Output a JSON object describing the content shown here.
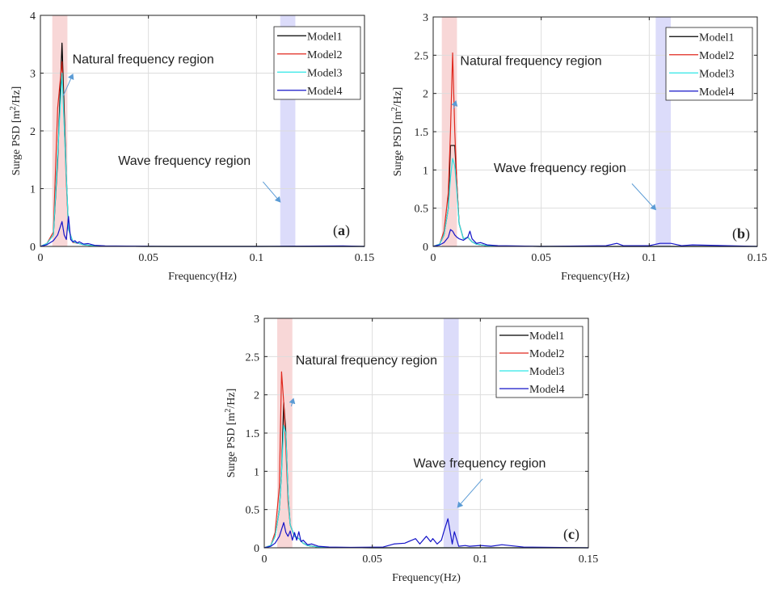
{
  "chart_data": [
    {
      "type": "line",
      "panel_label": "(a)",
      "xlabel": "Frequency(Hz)",
      "ylabel_main": "Surge PSD [m",
      "ylabel_sup": "2",
      "ylabel_end": "/Hz]",
      "xlim": [
        0,
        0.15
      ],
      "ylim": [
        0,
        4
      ],
      "xticks": [
        0,
        0.05,
        0.1,
        0.15
      ],
      "xtick_labels": [
        "0",
        "0.05",
        "0.1",
        "0.15"
      ],
      "yticks": [
        0,
        1,
        2,
        3,
        4
      ],
      "ytick_labels": [
        "0",
        "1",
        "2",
        "3",
        "4"
      ],
      "grid": true,
      "legend_position": "top-right",
      "regions": [
        {
          "x0": 0.0055,
          "x1": 0.0125,
          "color": "#f8d7d7"
        },
        {
          "x0": 0.111,
          "x1": 0.118,
          "color": "#dcdcfa"
        }
      ],
      "annotations": [
        {
          "text": "Natural frequency region",
          "tx": 0.0148,
          "ty": 3.17,
          "ax": 0.0105,
          "ay": 2.6,
          "atx": 0.015,
          "aty": 2.98
        },
        {
          "text": "Wave frequency region",
          "tx": 0.036,
          "ty": 1.41,
          "ax": 0.103,
          "ay": 1.12,
          "atx": 0.111,
          "aty": 0.77
        }
      ],
      "series": [
        {
          "name": "Model1",
          "color": "#000000",
          "x": [
            0,
            0.003,
            0.006,
            0.008,
            0.01,
            0.012,
            0.013,
            0.015,
            0.018,
            0.02,
            0.025,
            0.03,
            0.05,
            0.15
          ],
          "y": [
            0,
            0.05,
            0.2,
            1.5,
            3.52,
            1.2,
            0.3,
            0.08,
            0.05,
            0.03,
            0.01,
            0.005,
            0,
            0
          ]
        },
        {
          "name": "Model2",
          "color": "#e0281e",
          "x": [
            0,
            0.003,
            0.006,
            0.008,
            0.01,
            0.012,
            0.013,
            0.015,
            0.018,
            0.02,
            0.025,
            0.03,
            0.05,
            0.15
          ],
          "y": [
            0,
            0.05,
            0.25,
            2.4,
            3.2,
            1.1,
            0.3,
            0.07,
            0.05,
            0.03,
            0.01,
            0.005,
            0,
            0
          ]
        },
        {
          "name": "Model3",
          "color": "#2ee6e6",
          "x": [
            0,
            0.003,
            0.006,
            0.008,
            0.01,
            0.012,
            0.013,
            0.015,
            0.018,
            0.02,
            0.025,
            0.03,
            0.05,
            0.15
          ],
          "y": [
            0,
            0.05,
            0.2,
            1.6,
            3.0,
            1.2,
            0.3,
            0.08,
            0.05,
            0.03,
            0.01,
            0.005,
            0,
            0
          ]
        },
        {
          "name": "Model4",
          "color": "#1414c8",
          "x": [
            0,
            0.003,
            0.006,
            0.008,
            0.01,
            0.011,
            0.012,
            0.013,
            0.014,
            0.015,
            0.016,
            0.017,
            0.018,
            0.02,
            0.022,
            0.025,
            0.03,
            0.04,
            0.06,
            0.1,
            0.14,
            0.15
          ],
          "y": [
            0,
            0.03,
            0.1,
            0.2,
            0.43,
            0.2,
            0.12,
            0.52,
            0.12,
            0.08,
            0.1,
            0.06,
            0.08,
            0.04,
            0.05,
            0.02,
            0.01,
            0.005,
            0,
            0,
            0.01,
            0
          ]
        }
      ]
    },
    {
      "type": "line",
      "panel_label": "(b)",
      "xlabel": "Frequency(Hz)",
      "ylabel_main": "Surge PSD [m",
      "ylabel_sup": "2",
      "ylabel_end": "/Hz]",
      "xlim": [
        0,
        0.15
      ],
      "ylim": [
        0,
        3
      ],
      "xticks": [
        0,
        0.05,
        0.1,
        0.15
      ],
      "xtick_labels": [
        "0",
        "0.05",
        "0.1",
        "0.15"
      ],
      "yticks": [
        0,
        0.5,
        1,
        1.5,
        2,
        2.5,
        3
      ],
      "ytick_labels": [
        "0",
        "0.5",
        "1",
        "1.5",
        "2",
        "2.5",
        "3"
      ],
      "grid": true,
      "legend_position": "top-right",
      "regions": [
        {
          "x0": 0.004,
          "x1": 0.011,
          "color": "#f8d7d7"
        },
        {
          "x0": 0.103,
          "x1": 0.11,
          "color": "#dcdcfa"
        }
      ],
      "annotations": [
        {
          "text": "Natural frequency region",
          "tx": 0.0125,
          "ty": 2.37,
          "ax": 0.0095,
          "ay": 1.8,
          "atx": 0.0105,
          "aty": 1.9
        },
        {
          "text": "Wave frequency region",
          "tx": 0.028,
          "ty": 0.97,
          "ax": 0.092,
          "ay": 0.82,
          "atx": 0.103,
          "aty": 0.48
        }
      ],
      "series": [
        {
          "name": "Model1",
          "color": "#000000",
          "x": [
            0,
            0.003,
            0.005,
            0.007,
            0.008,
            0.01,
            0.011,
            0.012,
            0.014,
            0.016,
            0.018,
            0.02,
            0.025,
            0.03,
            0.05,
            0.15
          ],
          "y": [
            0,
            0.03,
            0.15,
            0.5,
            1.32,
            1.32,
            0.8,
            0.3,
            0.1,
            0.12,
            0.06,
            0.03,
            0.01,
            0.005,
            0,
            0
          ]
        },
        {
          "name": "Model2",
          "color": "#e0281e",
          "x": [
            0,
            0.003,
            0.005,
            0.007,
            0.008,
            0.009,
            0.01,
            0.011,
            0.012,
            0.014,
            0.016,
            0.018,
            0.02,
            0.025,
            0.03,
            0.05,
            0.15
          ],
          "y": [
            0,
            0.03,
            0.2,
            0.7,
            1.5,
            2.53,
            1.5,
            0.8,
            0.3,
            0.1,
            0.12,
            0.06,
            0.03,
            0.01,
            0.005,
            0,
            0
          ]
        },
        {
          "name": "Model3",
          "color": "#2ee6e6",
          "x": [
            0,
            0.003,
            0.005,
            0.007,
            0.008,
            0.009,
            0.01,
            0.011,
            0.012,
            0.014,
            0.016,
            0.018,
            0.02,
            0.025,
            0.03,
            0.05,
            0.15
          ],
          "y": [
            0,
            0.03,
            0.15,
            0.5,
            0.9,
            1.15,
            1.05,
            0.7,
            0.3,
            0.1,
            0.12,
            0.06,
            0.03,
            0.01,
            0.005,
            0,
            0
          ]
        },
        {
          "name": "Model4",
          "color": "#1414c8",
          "x": [
            0,
            0.003,
            0.005,
            0.007,
            0.008,
            0.009,
            0.01,
            0.011,
            0.012,
            0.014,
            0.016,
            0.017,
            0.018,
            0.02,
            0.022,
            0.025,
            0.03,
            0.04,
            0.05,
            0.08,
            0.085,
            0.088,
            0.09,
            0.1,
            0.105,
            0.11,
            0.115,
            0.12,
            0.15
          ],
          "y": [
            0,
            0.02,
            0.05,
            0.12,
            0.22,
            0.2,
            0.15,
            0.12,
            0.1,
            0.08,
            0.12,
            0.2,
            0.1,
            0.04,
            0.05,
            0.02,
            0.01,
            0.005,
            0,
            0.01,
            0.04,
            0.01,
            0.01,
            0.01,
            0.04,
            0.04,
            0.01,
            0.02,
            0
          ]
        }
      ]
    },
    {
      "type": "line",
      "panel_label": "(c)",
      "xlabel": "Frequency(Hz)",
      "ylabel_main": "Surge PSD [m",
      "ylabel_sup": "2",
      "ylabel_end": "/Hz]",
      "xlim": [
        0,
        0.15
      ],
      "ylim": [
        0,
        3
      ],
      "xticks": [
        0,
        0.05,
        0.1,
        0.15
      ],
      "xtick_labels": [
        "0",
        "0.05",
        "0.1",
        "0.15"
      ],
      "yticks": [
        0,
        0.5,
        1,
        1.5,
        2,
        2.5,
        3
      ],
      "ytick_labels": [
        "0",
        "0.5",
        "1",
        "1.5",
        "2",
        "2.5",
        "3"
      ],
      "grid": true,
      "legend_position": "top-right",
      "regions": [
        {
          "x0": 0.006,
          "x1": 0.013,
          "color": "#f8d7d7"
        },
        {
          "x0": 0.083,
          "x1": 0.09,
          "color": "#dcdcfa"
        }
      ],
      "annotations": [
        {
          "text": "Natural frequency region",
          "tx": 0.0145,
          "ty": 2.4,
          "ax": 0.0125,
          "ay": 1.85,
          "atx": 0.0135,
          "aty": 1.95
        },
        {
          "text": "Wave frequency region",
          "tx": 0.069,
          "ty": 1.05,
          "ax": 0.101,
          "ay": 0.9,
          "atx": 0.0895,
          "aty": 0.53
        }
      ],
      "series": [
        {
          "name": "Model1",
          "color": "#000000",
          "x": [
            0,
            0.003,
            0.005,
            0.007,
            0.008,
            0.009,
            0.01,
            0.011,
            0.012,
            0.014,
            0.016,
            0.018,
            0.02,
            0.025,
            0.03,
            0.05,
            0.15
          ],
          "y": [
            0,
            0.03,
            0.15,
            0.5,
            1.0,
            1.9,
            1.5,
            0.7,
            0.3,
            0.15,
            0.12,
            0.06,
            0.03,
            0.01,
            0.005,
            0,
            0
          ]
        },
        {
          "name": "Model2",
          "color": "#e0281e",
          "x": [
            0,
            0.003,
            0.005,
            0.007,
            0.008,
            0.009,
            0.01,
            0.011,
            0.012,
            0.014,
            0.016,
            0.018,
            0.02,
            0.025,
            0.03,
            0.05,
            0.15
          ],
          "y": [
            0,
            0.03,
            0.2,
            0.8,
            2.3,
            1.9,
            1.3,
            0.6,
            0.3,
            0.15,
            0.12,
            0.06,
            0.03,
            0.01,
            0.005,
            0,
            0
          ]
        },
        {
          "name": "Model3",
          "color": "#2ee6e6",
          "x": [
            0,
            0.003,
            0.005,
            0.007,
            0.008,
            0.009,
            0.01,
            0.011,
            0.012,
            0.014,
            0.016,
            0.018,
            0.02,
            0.025,
            0.03,
            0.05,
            0.15
          ],
          "y": [
            0,
            0.03,
            0.15,
            0.5,
            1.0,
            1.6,
            1.5,
            0.7,
            0.3,
            0.15,
            0.12,
            0.06,
            0.03,
            0.01,
            0.005,
            0,
            0
          ]
        },
        {
          "name": "Model4",
          "color": "#1414c8",
          "x": [
            0,
            0.003,
            0.005,
            0.007,
            0.009,
            0.01,
            0.011,
            0.012,
            0.013,
            0.014,
            0.015,
            0.016,
            0.017,
            0.018,
            0.02,
            0.022,
            0.025,
            0.03,
            0.04,
            0.055,
            0.06,
            0.065,
            0.07,
            0.072,
            0.075,
            0.077,
            0.078,
            0.08,
            0.082,
            0.083,
            0.085,
            0.087,
            0.088,
            0.09,
            0.093,
            0.095,
            0.1,
            0.105,
            0.11,
            0.12,
            0.15
          ],
          "y": [
            0,
            0.02,
            0.06,
            0.15,
            0.33,
            0.2,
            0.15,
            0.22,
            0.1,
            0.2,
            0.1,
            0.21,
            0.08,
            0.1,
            0.04,
            0.05,
            0.02,
            0.01,
            0.005,
            0.01,
            0.05,
            0.06,
            0.12,
            0.05,
            0.15,
            0.08,
            0.12,
            0.05,
            0.1,
            0.2,
            0.38,
            0.05,
            0.21,
            0.02,
            0.03,
            0.02,
            0.03,
            0.02,
            0.04,
            0.01,
            0
          ]
        }
      ]
    }
  ]
}
